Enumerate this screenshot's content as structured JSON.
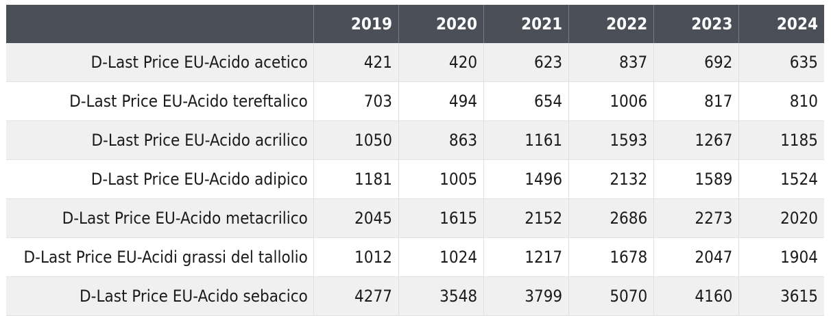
{
  "chart_data": {
    "type": "table",
    "columns": [
      "",
      "2019",
      "2020",
      "2021",
      "2022",
      "2023",
      "2024"
    ],
    "rows": [
      {
        "label": "D-Last Price EU-Acido acetico",
        "values": [
          421,
          420,
          623,
          837,
          692,
          635
        ]
      },
      {
        "label": "D-Last Price EU-Acido tereftalico",
        "values": [
          703,
          494,
          654,
          1006,
          817,
          810
        ]
      },
      {
        "label": "D-Last Price EU-Acido acrilico",
        "values": [
          1050,
          863,
          1161,
          1593,
          1267,
          1185
        ]
      },
      {
        "label": "D-Last Price EU-Acido adipico",
        "values": [
          1181,
          1005,
          1496,
          2132,
          1589,
          1524
        ]
      },
      {
        "label": "D-Last Price EU-Acido metacrilico",
        "values": [
          2045,
          1615,
          2152,
          2686,
          2273,
          2020
        ]
      },
      {
        "label": "D-Last Price EU-Acidi grassi del tallolio",
        "values": [
          1012,
          1024,
          1217,
          1678,
          2047,
          1904
        ]
      },
      {
        "label": "D-Last Price EU-Acido sebacico",
        "values": [
          4277,
          3548,
          3799,
          5070,
          4160,
          3615
        ]
      }
    ]
  },
  "colors": {
    "header_bg": "#4a4f58",
    "header_text": "#ffffff",
    "row_alt_bg": "#f0f0f0",
    "row_bg": "#ffffff"
  }
}
